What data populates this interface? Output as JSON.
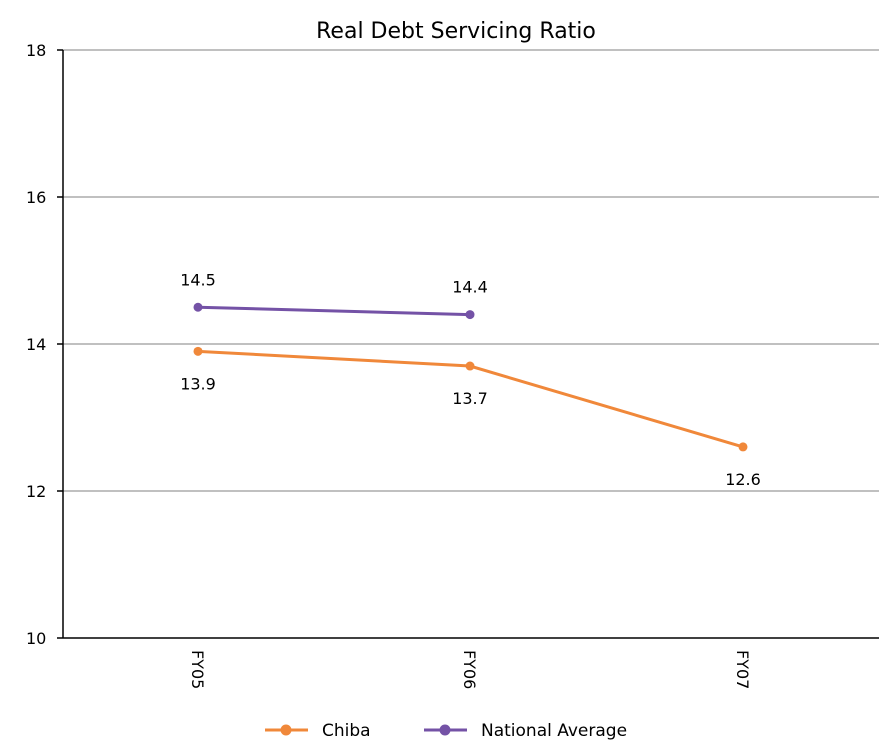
{
  "chart_data": {
    "type": "line",
    "title": "Real Debt Servicing Ratio",
    "xlabel": "",
    "ylabel": "",
    "categories": [
      "FY05",
      "FY06",
      "FY07"
    ],
    "ylim": [
      10,
      18
    ],
    "yticks": [
      "10",
      "12",
      "14",
      "16",
      "18"
    ],
    "grid": true,
    "legend_position": "bottom",
    "series": [
      {
        "name": "Chiba",
        "color": "#F0883A",
        "values": [
          13.9,
          13.7,
          12.6
        ],
        "labels": [
          "13.9",
          "13.7",
          "12.6"
        ],
        "label_position": "below"
      },
      {
        "name": "National Average",
        "color": "#7452A6",
        "values": [
          14.5,
          14.4,
          null
        ],
        "labels": [
          "14.5",
          "14.4",
          ""
        ],
        "label_position": "above"
      }
    ]
  }
}
